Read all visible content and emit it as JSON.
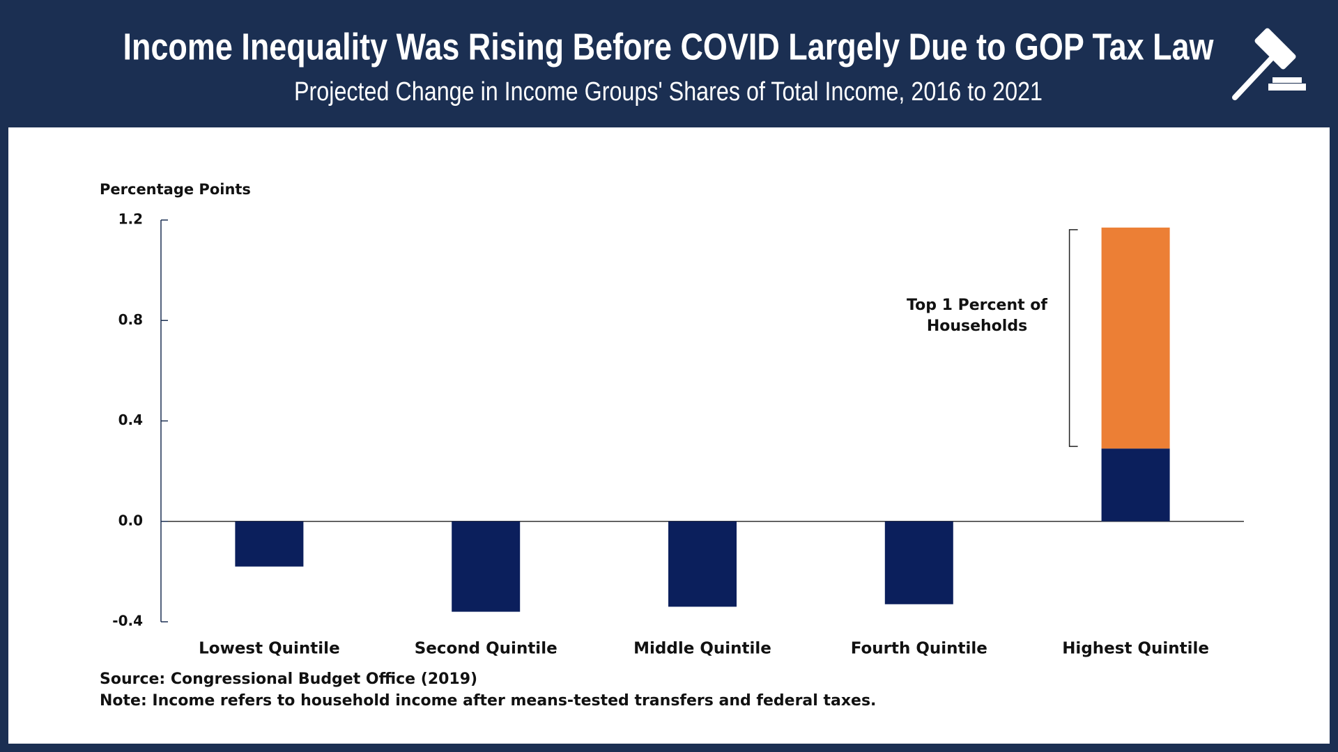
{
  "chart_data": {
    "type": "bar",
    "stacked": true,
    "title": "Income Inequality Was Rising Before COVID Largely Due to GOP Tax Law",
    "subtitle": "Projected Change in Income Groups' Shares of Total Income, 2016 to 2021",
    "y_axis_label": "Percentage Points",
    "categories": [
      "Lowest Quintile",
      "Second Quintile",
      "Middle Quintile",
      "Fourth Quintile",
      "Highest Quintile"
    ],
    "series": [
      {
        "color": "#0b1f5c",
        "values": [
          -0.18,
          -0.36,
          -0.34,
          -0.33,
          0.29
        ]
      },
      {
        "name": "Top 1 Percent of Households",
        "color": "#ec7f35",
        "values": [
          null,
          null,
          null,
          null,
          0.88
        ]
      }
    ],
    "ylim": [
      -0.4,
      1.2
    ],
    "yticks": [
      -0.4,
      {
        "value": 0,
        "label": "0.0"
      },
      0.4,
      0.8,
      1.2
    ],
    "grid": false,
    "source": "Source: Congressional Budget Office (2019)",
    "note": "Note: Income refers to household income after means-tested transfers and federal taxes."
  }
}
